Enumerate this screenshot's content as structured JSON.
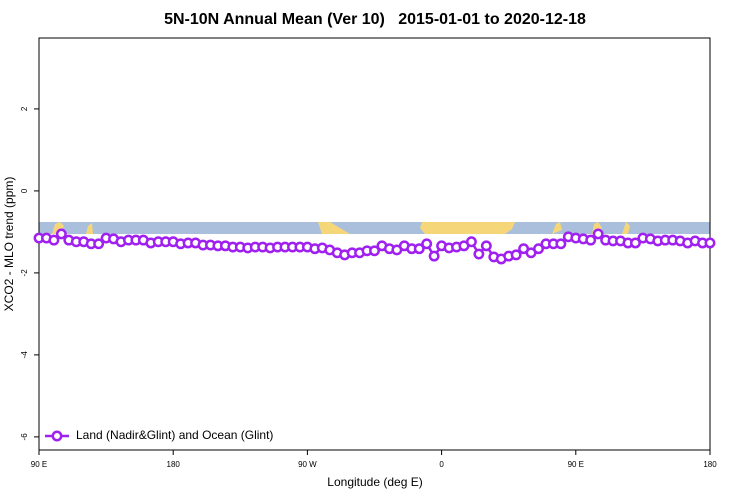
{
  "chart_data": {
    "type": "line",
    "title": "5N-10N Annual Mean (Ver 10)   2015-01-01 to 2020-12-18",
    "x_label": "Longitude (deg E)",
    "y_label": "XCO2 - MLO trend (ppm)",
    "x": [
      90,
      95,
      100,
      105,
      110,
      115,
      120,
      125,
      130,
      135,
      140,
      145,
      150,
      155,
      160,
      165,
      170,
      175,
      180,
      185,
      190,
      195,
      200,
      205,
      210,
      215,
      220,
      225,
      230,
      235,
      240,
      245,
      250,
      255,
      260,
      265,
      270,
      275,
      280,
      285,
      290,
      295,
      300,
      305,
      310,
      315,
      320,
      325,
      330,
      335,
      340,
      345,
      350,
      355,
      360,
      365,
      370,
      375,
      380,
      385,
      390,
      395,
      400,
      405,
      410,
      415,
      420,
      425,
      430,
      435,
      440,
      445,
      450,
      455,
      460,
      465,
      470,
      475,
      480,
      485,
      490,
      495,
      500,
      505,
      510,
      515,
      520,
      525,
      530,
      535,
      540
    ],
    "series": [
      {
        "name": "Land (Nadir&Glint) and Ocean (Glint)",
        "color": "#a020f0",
        "values": [
          -1.15,
          -1.15,
          -1.2,
          -1.05,
          -1.2,
          -1.24,
          -1.24,
          -1.29,
          -1.29,
          -1.15,
          -1.17,
          -1.24,
          -1.2,
          -1.2,
          -1.2,
          -1.27,
          -1.24,
          -1.24,
          -1.24,
          -1.29,
          -1.27,
          -1.27,
          -1.32,
          -1.32,
          -1.34,
          -1.34,
          -1.37,
          -1.37,
          -1.39,
          -1.37,
          -1.37,
          -1.39,
          -1.37,
          -1.37,
          -1.37,
          -1.37,
          -1.37,
          -1.41,
          -1.39,
          -1.44,
          -1.51,
          -1.56,
          -1.51,
          -1.51,
          -1.46,
          -1.46,
          -1.34,
          -1.41,
          -1.44,
          -1.34,
          -1.41,
          -1.41,
          -1.29,
          -1.59,
          -1.34,
          -1.39,
          -1.37,
          -1.34,
          -1.24,
          -1.54,
          -1.34,
          -1.61,
          -1.66,
          -1.59,
          -1.56,
          -1.41,
          -1.51,
          -1.41,
          -1.29,
          -1.29,
          -1.29,
          -1.12,
          -1.15,
          -1.17,
          -1.2,
          -1.05,
          -1.2,
          -1.22,
          -1.22,
          -1.27,
          -1.27,
          -1.15,
          -1.17,
          -1.22,
          -1.2,
          -1.2,
          -1.22,
          -1.27,
          -1.22,
          -1.27,
          -1.27
        ]
      }
    ],
    "xlim": [
      90,
      540
    ],
    "ylim": [
      -6.32,
      3.73
    ],
    "xticks": [
      {
        "value": 90,
        "label": "90 E"
      },
      180,
      {
        "value": 270,
        "label": "90 W"
      },
      {
        "value": 360,
        "label": "0"
      },
      {
        "value": 450,
        "label": "90 E"
      },
      {
        "value": 540,
        "label": "180"
      }
    ],
    "yticks": [
      -6,
      -4,
      -2,
      0,
      2
    ],
    "legend": "bottom-left"
  }
}
